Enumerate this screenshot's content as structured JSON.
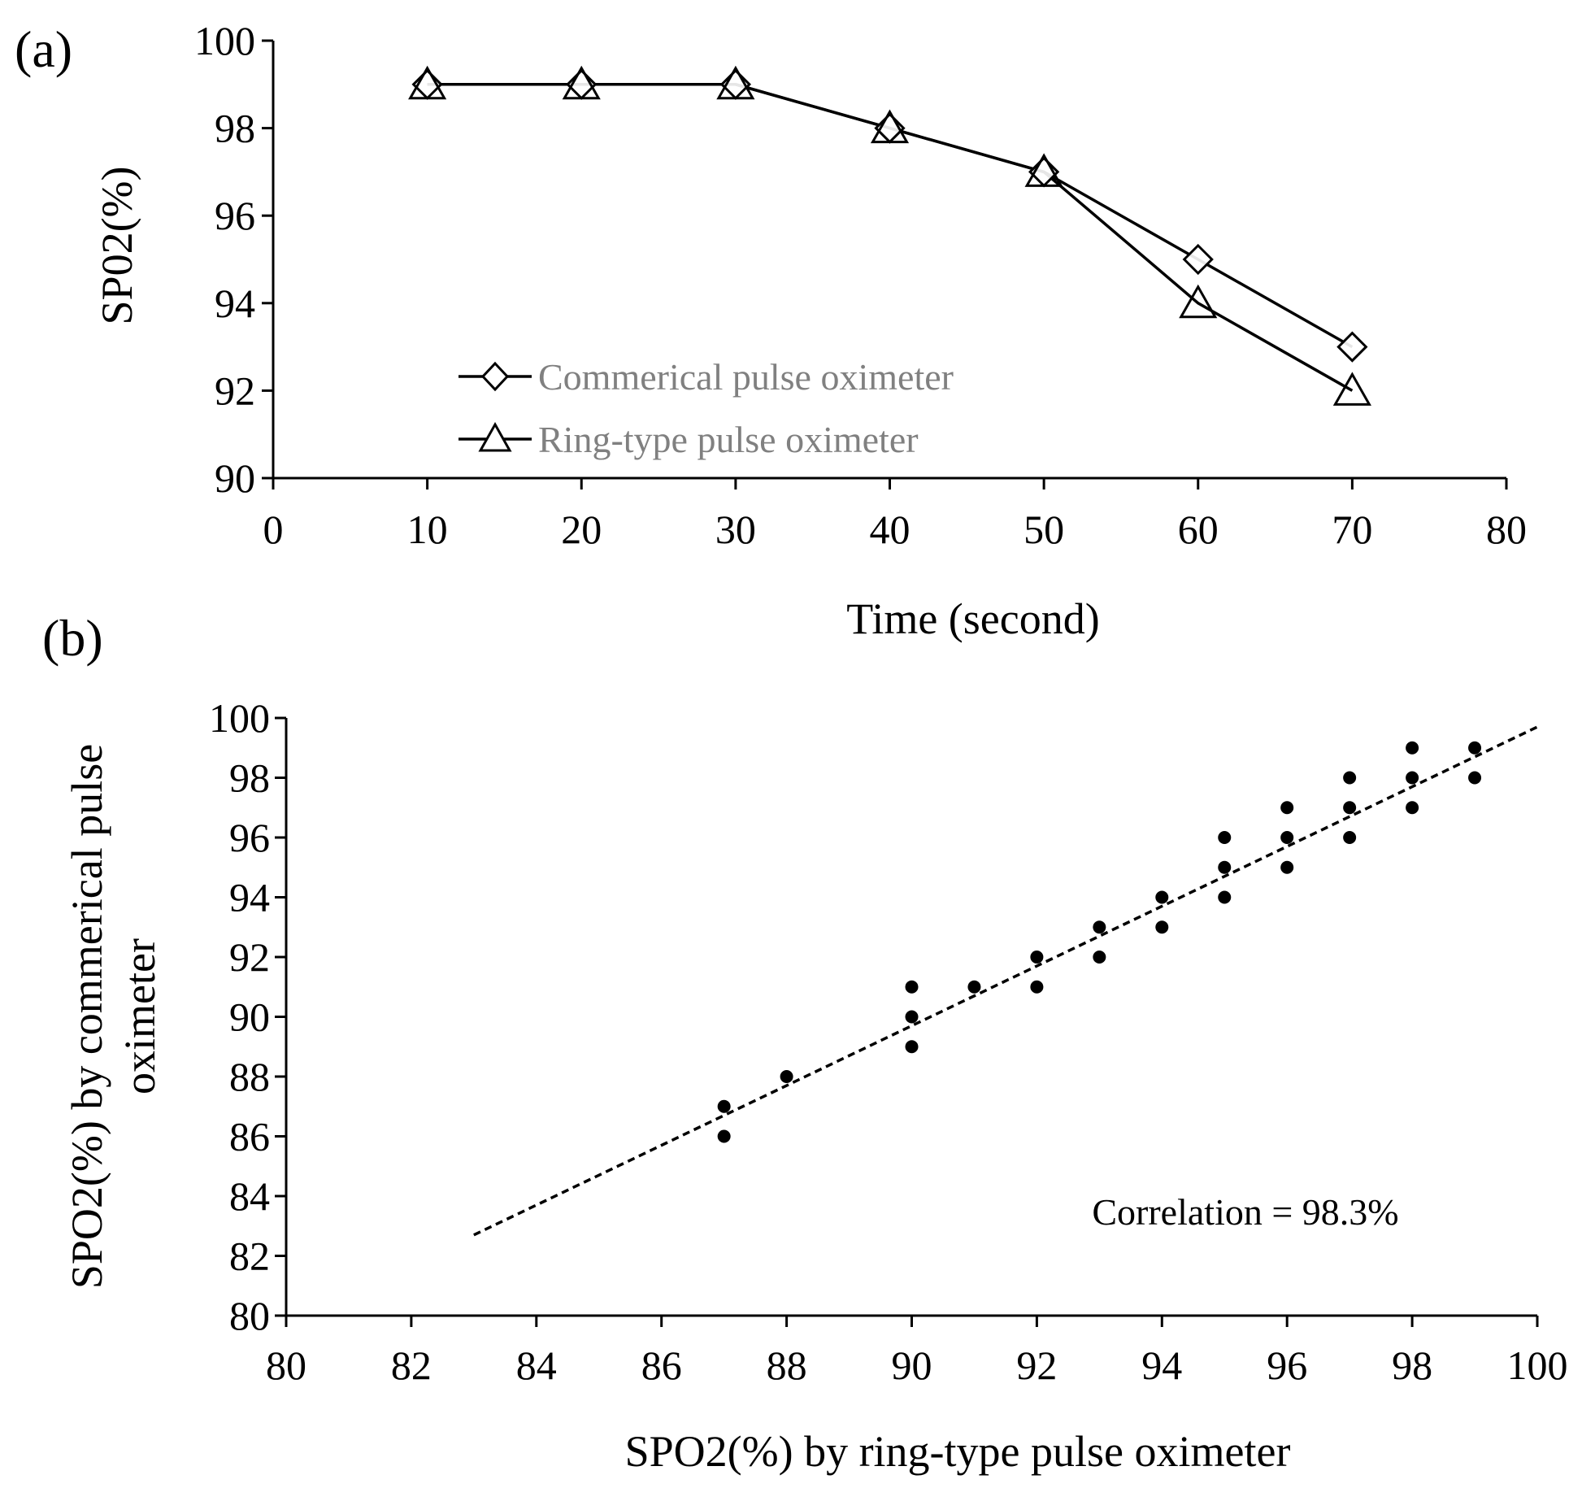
{
  "chart_data": [
    {
      "panel": "(a)",
      "type": "line",
      "xlabel": "Time (second)",
      "ylabel": "SP02(%)",
      "xlim": [
        0,
        80
      ],
      "ylim": [
        90,
        100
      ],
      "xticks": [
        0,
        10,
        20,
        30,
        40,
        50,
        60,
        70,
        80
      ],
      "yticks": [
        90,
        92,
        94,
        96,
        98,
        100
      ],
      "legend_position": "bottom-center",
      "x": [
        10,
        20,
        30,
        40,
        50,
        60,
        70
      ],
      "series": [
        {
          "name": "Commerical pulse oximeter",
          "marker": "diamond",
          "values": [
            99,
            99,
            99,
            98,
            97,
            95,
            93
          ]
        },
        {
          "name": "Ring-type pulse oximeter",
          "marker": "triangle",
          "values": [
            99,
            99,
            99,
            98,
            97,
            94,
            92
          ]
        }
      ]
    },
    {
      "panel": "(b)",
      "type": "scatter",
      "xlabel": "SPO2(%) by ring-type pulse oximeter",
      "ylabel_lines": [
        "SPO2(%) by commerical pulse",
        "oximeter"
      ],
      "xlim": [
        80,
        100
      ],
      "ylim": [
        80,
        100
      ],
      "xticks": [
        80,
        82,
        84,
        86,
        88,
        90,
        92,
        94,
        96,
        98,
        100
      ],
      "yticks": [
        80,
        82,
        84,
        86,
        88,
        90,
        92,
        94,
        96,
        98,
        100
      ],
      "points": [
        [
          87,
          87
        ],
        [
          87,
          86
        ],
        [
          88,
          88
        ],
        [
          90,
          91
        ],
        [
          90,
          90
        ],
        [
          90,
          89
        ],
        [
          91,
          91
        ],
        [
          92,
          92
        ],
        [
          92,
          91
        ],
        [
          93,
          93
        ],
        [
          93,
          92
        ],
        [
          94,
          94
        ],
        [
          94,
          93
        ],
        [
          95,
          96
        ],
        [
          95,
          95
        ],
        [
          95,
          94
        ],
        [
          96,
          97
        ],
        [
          96,
          96
        ],
        [
          96,
          95
        ],
        [
          97,
          98
        ],
        [
          97,
          97
        ],
        [
          97,
          96
        ],
        [
          98,
          99
        ],
        [
          98,
          98
        ],
        [
          98,
          97
        ],
        [
          99,
          99
        ],
        [
          99,
          98
        ]
      ],
      "trendline": {
        "style": "dashed",
        "x1": 83,
        "y1": 82.7,
        "x2": 100,
        "y2": 99.7
      },
      "annotation": "Correlation = 98.3%"
    }
  ]
}
